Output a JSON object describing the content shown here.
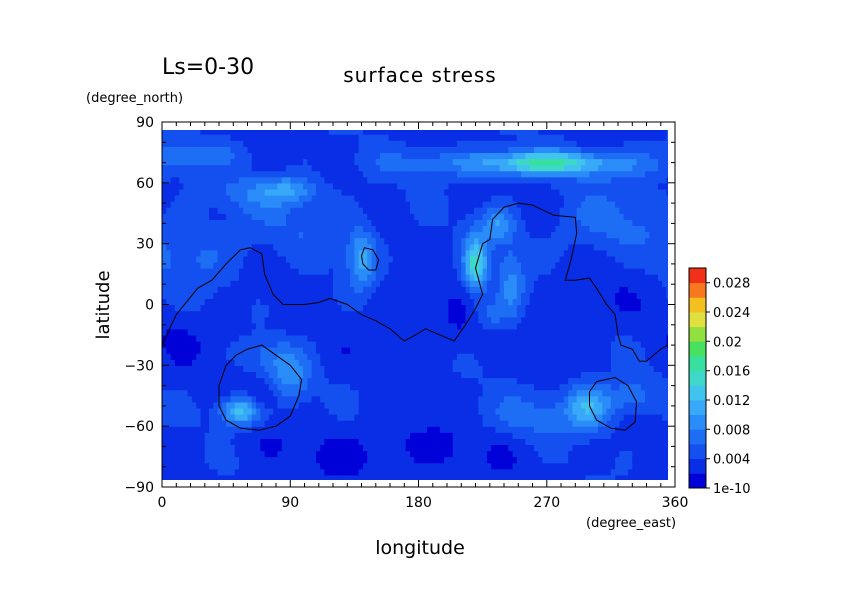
{
  "chart_data": {
    "type": "heatmap",
    "title": "surface stress",
    "subtitle": "Ls=0-30",
    "xlabel": "longitude",
    "ylabel": "latitude",
    "x_units": "(degree_east)",
    "y_units": "(degree_north)",
    "xlim": [
      0,
      360
    ],
    "ylim": [
      -90,
      90
    ],
    "x_ticks": [
      "0",
      "90",
      "180",
      "270",
      "360"
    ],
    "y_ticks": [
      "90",
      "60",
      "30",
      "0",
      "−30",
      "−60",
      "−90"
    ],
    "x_tick_values": [
      0,
      90,
      180,
      270,
      360
    ],
    "y_tick_values": [
      90,
      60,
      30,
      0,
      -30,
      -60,
      -90
    ],
    "colorbar": {
      "labels": [
        "1e-10",
        "0.004",
        "0.008",
        "0.012",
        "0.016",
        "0.02",
        "0.024",
        "0.028"
      ],
      "min": 0,
      "max": 0.03,
      "levels": 15,
      "colors": [
        "#0000d8",
        "#0a2ee6",
        "#1450f0",
        "#1e6ef5",
        "#2a8cf8",
        "#38a8f8",
        "#40c4ee",
        "#3ed8c8",
        "#38e0a0",
        "#48e060",
        "#90e040",
        "#e0e040",
        "#f4c020",
        "#f87820",
        "#f03018"
      ]
    },
    "field": {
      "background": 0.0035,
      "sources": [
        {
          "lon": 270,
          "lat": 70,
          "amp": 0.011,
          "slon": 28,
          "slat": 4
        },
        {
          "lon": 210,
          "lat": 70,
          "amp": 0.004,
          "slon": 40,
          "slat": 5
        },
        {
          "lon": 330,
          "lat": 68,
          "amp": 0.003,
          "slon": 30,
          "slat": 5
        },
        {
          "lon": 20,
          "lat": 75,
          "amp": 0.003,
          "slon": 30,
          "slat": 5
        },
        {
          "lon": 90,
          "lat": 57,
          "amp": 0.006,
          "slon": 14,
          "slat": 5
        },
        {
          "lon": 60,
          "lat": 55,
          "amp": 0.003,
          "slon": 20,
          "slat": 6
        },
        {
          "lon": 140,
          "lat": 23,
          "amp": 0.007,
          "slon": 7,
          "slat": 10
        },
        {
          "lon": 220,
          "lat": 20,
          "amp": 0.011,
          "slon": 6,
          "slat": 10
        },
        {
          "lon": 235,
          "lat": 40,
          "amp": 0.006,
          "slon": 8,
          "slat": 6
        },
        {
          "lon": 245,
          "lat": 10,
          "amp": 0.005,
          "slon": 7,
          "slat": 14
        },
        {
          "lon": 230,
          "lat": -5,
          "amp": 0.004,
          "slon": 8,
          "slat": 6
        },
        {
          "lon": 55,
          "lat": -52,
          "amp": 0.01,
          "slon": 10,
          "slat": 5
        },
        {
          "lon": 90,
          "lat": -35,
          "amp": 0.005,
          "slon": 10,
          "slat": 9
        },
        {
          "lon": 75,
          "lat": -25,
          "amp": 0.003,
          "slon": 12,
          "slat": 6
        },
        {
          "lon": 300,
          "lat": -50,
          "amp": 0.008,
          "slon": 12,
          "slat": 8
        },
        {
          "lon": 330,
          "lat": -45,
          "amp": 0.004,
          "slon": 10,
          "slat": 6
        },
        {
          "lon": 260,
          "lat": -55,
          "amp": 0.003,
          "slon": 25,
          "slat": 8
        },
        {
          "lon": 20,
          "lat": 25,
          "amp": 0.003,
          "slon": 25,
          "slat": 12
        },
        {
          "lon": 310,
          "lat": 40,
          "amp": 0.003,
          "slon": 25,
          "slat": 12
        },
        {
          "lon": 100,
          "lat": 40,
          "amp": 0.002,
          "slon": 30,
          "slat": 10
        }
      ],
      "sinks": [
        {
          "lon": 160,
          "lat": -72,
          "amp": 0.002,
          "slon": 60,
          "slat": 10
        },
        {
          "lon": 200,
          "lat": -10,
          "amp": 0.0015,
          "slon": 40,
          "slat": 12
        },
        {
          "lon": 70,
          "lat": -45,
          "amp": 0.003,
          "slon": 8,
          "slat": 5
        },
        {
          "lon": 20,
          "lat": -15,
          "amp": 0.0012,
          "slon": 25,
          "slat": 10
        },
        {
          "lon": 300,
          "lat": 5,
          "amp": 0.0012,
          "slon": 25,
          "slat": 12
        }
      ]
    },
    "contours": [
      {
        "name": "dichotomy-boundary",
        "points": [
          [
            0,
            -20
          ],
          [
            10,
            -5
          ],
          [
            25,
            8
          ],
          [
            35,
            12
          ],
          [
            45,
            20
          ],
          [
            55,
            27
          ],
          [
            62,
            28
          ],
          [
            70,
            25
          ],
          [
            72,
            15
          ],
          [
            78,
            5
          ],
          [
            85,
            0
          ],
          [
            100,
            0
          ],
          [
            110,
            1
          ],
          [
            118,
            3
          ],
          [
            130,
            0
          ],
          [
            140,
            -5
          ],
          [
            150,
            -8
          ],
          [
            160,
            -12
          ],
          [
            170,
            -18
          ],
          [
            178,
            -15
          ],
          [
            185,
            -12
          ],
          [
            195,
            -15
          ],
          [
            205,
            -18
          ],
          [
            213,
            -10
          ],
          [
            220,
            -2
          ],
          [
            225,
            5
          ],
          [
            220,
            18
          ],
          [
            225,
            30
          ],
          [
            230,
            32
          ],
          [
            232,
            42
          ],
          [
            240,
            48
          ],
          [
            250,
            50
          ],
          [
            260,
            49
          ],
          [
            275,
            44
          ],
          [
            290,
            43
          ],
          [
            291,
            35
          ],
          [
            287,
            22
          ],
          [
            283,
            12
          ],
          [
            290,
            12
          ],
          [
            300,
            13
          ],
          [
            305,
            8
          ],
          [
            312,
            0
          ],
          [
            318,
            -5
          ],
          [
            320,
            -15
          ],
          [
            322,
            -20
          ],
          [
            330,
            -22
          ],
          [
            335,
            -28
          ],
          [
            340,
            -28
          ],
          [
            350,
            -22
          ],
          [
            360,
            -18
          ]
        ]
      },
      {
        "name": "crater-hellas",
        "points": [
          [
            45,
            -30
          ],
          [
            40,
            -40
          ],
          [
            40,
            -50
          ],
          [
            45,
            -57
          ],
          [
            55,
            -61
          ],
          [
            68,
            -62
          ],
          [
            80,
            -60
          ],
          [
            90,
            -55
          ],
          [
            96,
            -45
          ],
          [
            98,
            -37
          ],
          [
            90,
            -30
          ],
          [
            80,
            -25
          ],
          [
            70,
            -20
          ],
          [
            60,
            -22
          ],
          [
            52,
            -25
          ]
        ]
      },
      {
        "name": "crater-argyre",
        "points": [
          [
            300,
            -43
          ],
          [
            305,
            -38
          ],
          [
            318,
            -36
          ],
          [
            327,
            -40
          ],
          [
            333,
            -48
          ],
          [
            332,
            -58
          ],
          [
            325,
            -62
          ],
          [
            315,
            -61
          ],
          [
            305,
            -57
          ],
          [
            300,
            -50
          ]
        ]
      },
      {
        "name": "volcano-elysium",
        "points": [
          [
            142,
            28
          ],
          [
            148,
            27
          ],
          [
            152,
            22
          ],
          [
            150,
            17
          ],
          [
            145,
            17
          ],
          [
            141,
            20
          ],
          [
            140,
            24
          ]
        ]
      }
    ]
  }
}
